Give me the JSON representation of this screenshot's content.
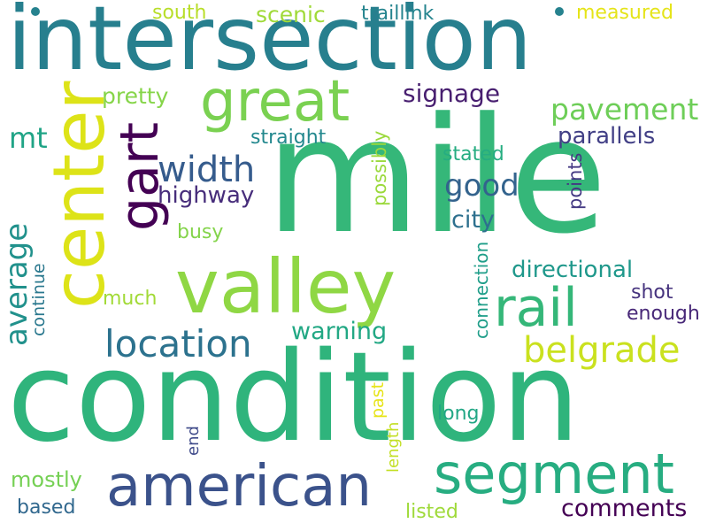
{
  "words": [
    {
      "id": "mile",
      "text": "mile",
      "color": "#35b779"
    },
    {
      "id": "condition",
      "text": "condition",
      "color": "#2fb47c"
    },
    {
      "id": "intersection",
      "text": "intersection",
      "color": "#277f8e"
    },
    {
      "id": "valley",
      "text": "valley",
      "color": "#8fd744"
    },
    {
      "id": "center",
      "text": "center",
      "color": "#dde318"
    },
    {
      "id": "american",
      "text": "american",
      "color": "#3b528b"
    },
    {
      "id": "gart",
      "text": "gart",
      "color": "#440154"
    },
    {
      "id": "segment",
      "text": "segment",
      "color": "#27ad81"
    },
    {
      "id": "great",
      "text": "great",
      "color": "#7ad151"
    },
    {
      "id": "rail",
      "text": "rail",
      "color": "#35b779"
    },
    {
      "id": "location",
      "text": "location",
      "color": "#2c728e"
    },
    {
      "id": "belgrade",
      "text": "belgrade",
      "color": "#cae11f"
    },
    {
      "id": "average",
      "text": "average",
      "color": "#21918c"
    },
    {
      "id": "width",
      "text": "width",
      "color": "#365c8d"
    },
    {
      "id": "pavement",
      "text": "pavement",
      "color": "#6ece58"
    },
    {
      "id": "good",
      "text": "good",
      "color": "#33638d"
    },
    {
      "id": "directional",
      "text": "directional",
      "color": "#1f988b"
    },
    {
      "id": "signage",
      "text": "signage",
      "color": "#481f70"
    },
    {
      "id": "mt",
      "text": "mt",
      "color": "#20a486"
    },
    {
      "id": "warning",
      "text": "warning",
      "color": "#22a884"
    },
    {
      "id": "comments",
      "text": "comments",
      "color": "#440154"
    },
    {
      "id": "parallels",
      "text": "parallels",
      "color": "#424086"
    },
    {
      "id": "highway",
      "text": "highway",
      "color": "#472d7b"
    },
    {
      "id": "city",
      "text": "city",
      "color": "#2d708e"
    },
    {
      "id": "scenic",
      "text": "scenic",
      "color": "#a0da39"
    },
    {
      "id": "straight",
      "text": "straight",
      "color": "#23888e"
    },
    {
      "id": "pretty",
      "text": "pretty",
      "color": "#86d549"
    },
    {
      "id": "traillink",
      "text": "traillink",
      "color": "#25848e"
    },
    {
      "id": "south",
      "text": "south",
      "color": "#b8de29"
    },
    {
      "id": "measured",
      "text": "measured",
      "color": "#e5e419"
    },
    {
      "id": "stated",
      "text": "stated",
      "color": "#26ad81"
    },
    {
      "id": "possibly",
      "text": "possibly",
      "color": "#9bd93c"
    },
    {
      "id": "points",
      "text": "points",
      "color": "#443983"
    },
    {
      "id": "busy",
      "text": "busy",
      "color": "#84d44b"
    },
    {
      "id": "connection",
      "text": "connection",
      "color": "#1f9e89"
    },
    {
      "id": "shot",
      "text": "shot",
      "color": "#46337e"
    },
    {
      "id": "enough",
      "text": "enough",
      "color": "#482878"
    },
    {
      "id": "much",
      "text": "much",
      "color": "#a2da37"
    },
    {
      "id": "continue",
      "text": "continue",
      "color": "#2a788e"
    },
    {
      "id": "mostly",
      "text": "mostly",
      "color": "#75d054"
    },
    {
      "id": "based",
      "text": "based",
      "color": "#31688e"
    },
    {
      "id": "past",
      "text": "past",
      "color": "#e7e419"
    },
    {
      "id": "end",
      "text": "end",
      "color": "#3e4989"
    },
    {
      "id": "length",
      "text": "length",
      "color": "#c2df23"
    },
    {
      "id": "long",
      "text": "long",
      "color": "#22a785"
    },
    {
      "id": "listed",
      "text": "listed",
      "color": "#9fda3a"
    }
  ],
  "dots": [
    {
      "id": "dot-top-left",
      "color": "#26828e"
    },
    {
      "id": "dot-top-right",
      "color": "#26828e"
    }
  ]
}
